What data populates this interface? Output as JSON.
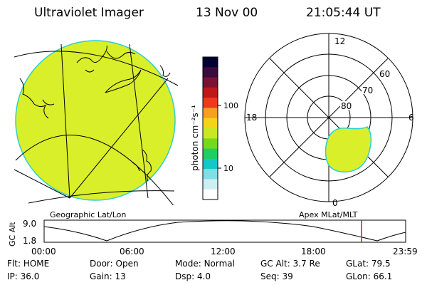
{
  "header": {
    "title": "Ultraviolet Imager",
    "date": "13 Nov 00",
    "time": "21:05:44 UT"
  },
  "colorbar": {
    "unit_label": "photon cm⁻²s⁻¹",
    "ticks": [
      "100",
      "10"
    ],
    "colors": [
      "#000033",
      "#3b0a3f",
      "#7a1233",
      "#c01818",
      "#ef3a1a",
      "#f7a020",
      "#f2d51a",
      "#c9e824",
      "#77d91c",
      "#1fcf5f",
      "#14c8c8",
      "#7fdfe6",
      "#cdeef2",
      "#ffffff"
    ]
  },
  "geo_panel": {
    "label": "Geographic Lat/Lon",
    "fill_color": "#d9ef2a"
  },
  "polar_panel": {
    "label": "Apex MLat/MLT",
    "mlt_labels": {
      "top": "12",
      "left": "18",
      "right": "6",
      "bottom": "0"
    },
    "lat_labels": [
      "60",
      "70",
      "80"
    ],
    "fill_color": "#d9ef2a"
  },
  "altitude_plot": {
    "ylabel": "GC Alt",
    "y_ticks": [
      "9.0",
      "1.8"
    ],
    "x_ticks": [
      "00:00",
      "06:00",
      "12:00",
      "18:00",
      "23:59"
    ],
    "marker_color": "#dd1111"
  },
  "status": {
    "row1": [
      {
        "label": "Flt:",
        "value": "HOME"
      },
      {
        "label": "Door:",
        "value": "Open"
      },
      {
        "label": "Mode:",
        "value": "Normal"
      },
      {
        "label": "GC Alt:",
        "value": "3.7 Re"
      },
      {
        "label": "GLat:",
        "value": "79.5"
      }
    ],
    "row2": [
      {
        "label": "IP:",
        "value": "36.0"
      },
      {
        "label": "Gain:",
        "value": "13"
      },
      {
        "label": "Dsp:",
        "value": "4.0"
      },
      {
        "label": "Seq:",
        "value": "39"
      },
      {
        "label": "GLon:",
        "value": "66.1"
      }
    ]
  }
}
